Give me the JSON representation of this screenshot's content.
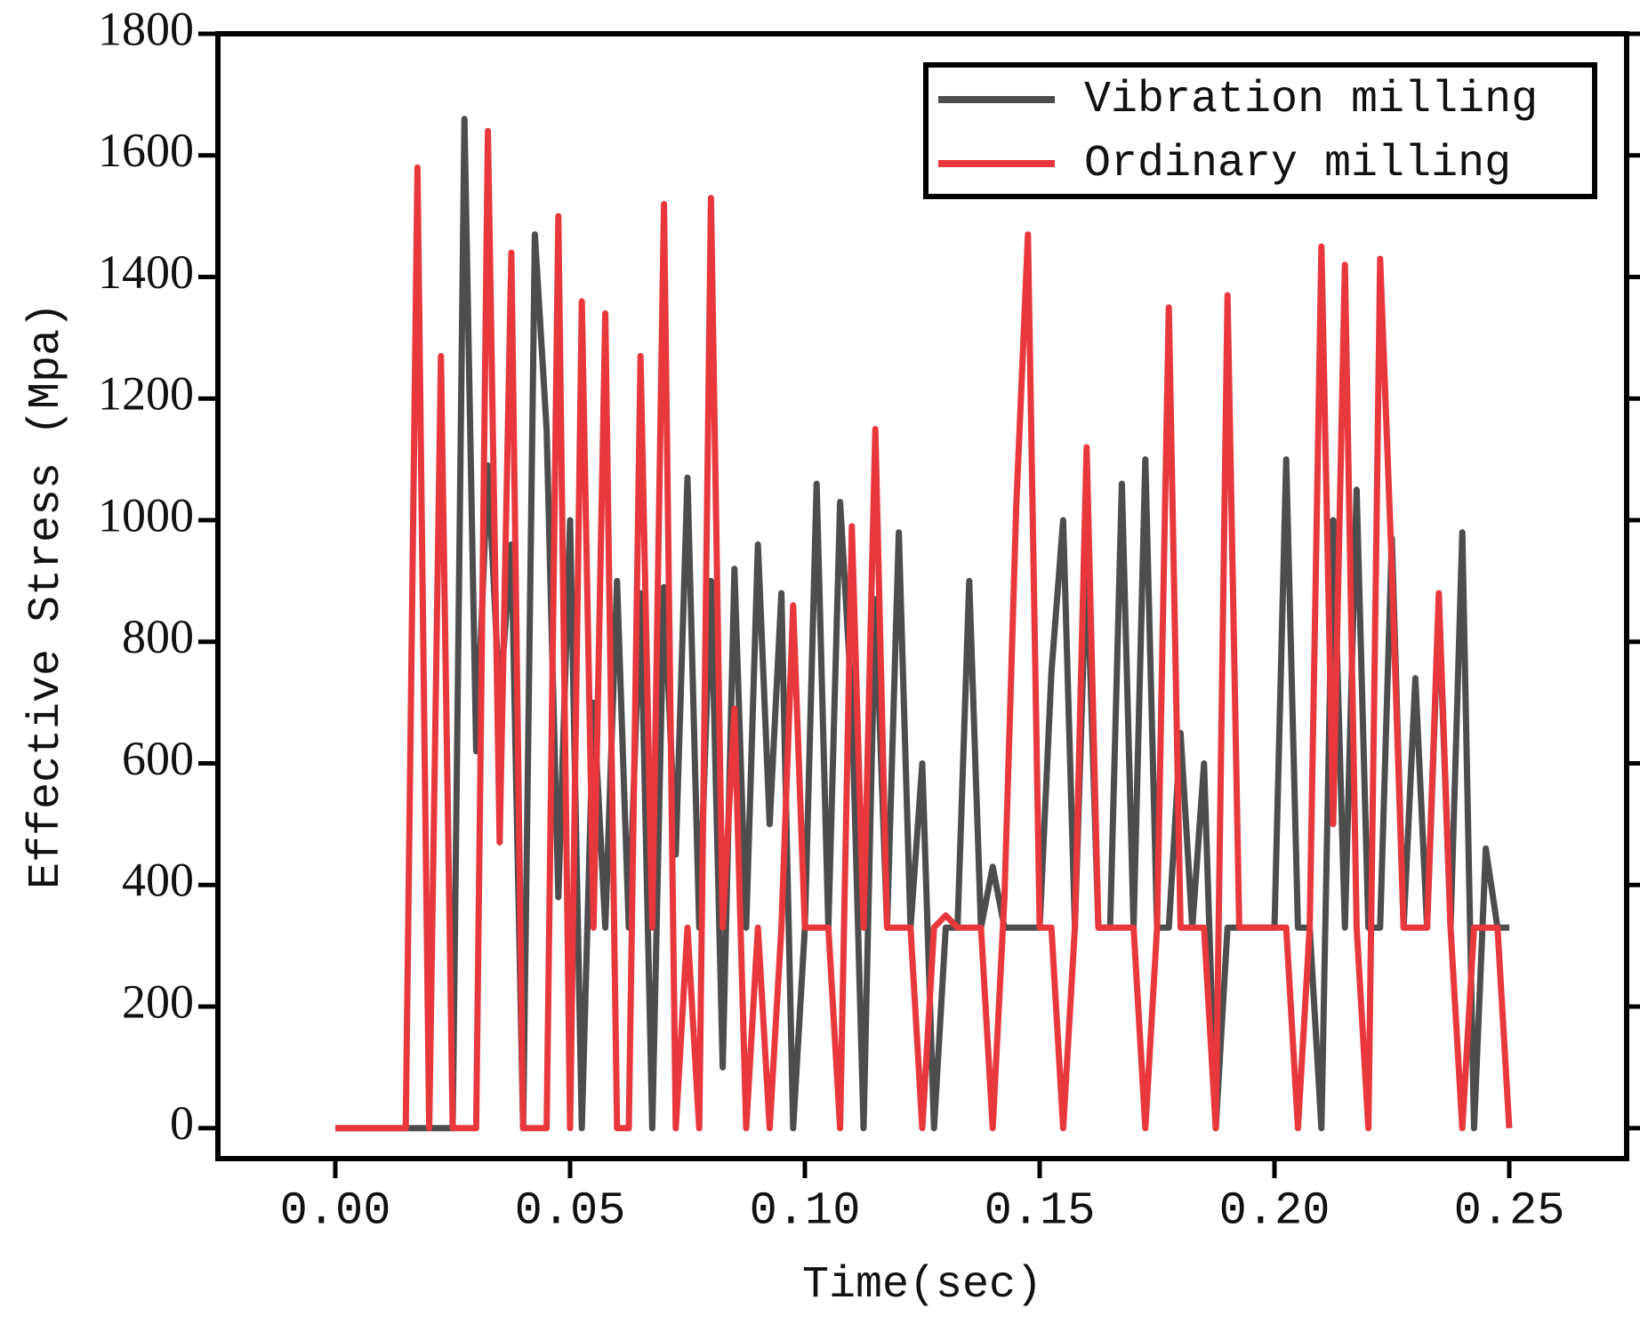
{
  "chart_data": {
    "type": "line",
    "xlabel": "Time(sec)",
    "ylabel": "Effective Stress (Mpa)",
    "x": [
      0,
      0.0025,
      0.005,
      0.0075,
      0.01,
      0.0125,
      0.015,
      0.0175,
      0.02,
      0.0225,
      0.025,
      0.0275,
      0.03,
      0.0325,
      0.035,
      0.0375,
      0.04,
      0.0425,
      0.045,
      0.0475,
      0.05,
      0.0525,
      0.055,
      0.0575,
      0.06,
      0.0625,
      0.065,
      0.0675,
      0.07,
      0.0725,
      0.075,
      0.0775,
      0.08,
      0.0825,
      0.085,
      0.0875,
      0.09,
      0.0925,
      0.095,
      0.0975,
      0.1,
      0.1025,
      0.105,
      0.1075,
      0.11,
      0.1125,
      0.115,
      0.1175,
      0.12,
      0.1225,
      0.125,
      0.1275,
      0.13,
      0.1325,
      0.135,
      0.1375,
      0.14,
      0.1425,
      0.145,
      0.1475,
      0.15,
      0.1525,
      0.155,
      0.1575,
      0.16,
      0.1625,
      0.165,
      0.1675,
      0.17,
      0.1725,
      0.175,
      0.1775,
      0.18,
      0.1825,
      0.185,
      0.1875,
      0.19,
      0.1925,
      0.195,
      0.1975,
      0.2,
      0.2025,
      0.205,
      0.2075,
      0.21,
      0.2125,
      0.215,
      0.2175,
      0.22,
      0.2225,
      0.225,
      0.2275,
      0.23,
      0.2325,
      0.235,
      0.2375,
      0.24,
      0.2425,
      0.245,
      0.2475,
      0.25
    ],
    "series": [
      {
        "name": "Vibration milling",
        "color": "#4d4d4d",
        "values": [
          0,
          0,
          0,
          0,
          0,
          0,
          0,
          0,
          0,
          0,
          0,
          1660,
          620,
          1090,
          700,
          960,
          0,
          1470,
          1150,
          380,
          1000,
          0,
          700,
          330,
          900,
          330,
          880,
          0,
          890,
          450,
          1070,
          330,
          900,
          100,
          920,
          330,
          960,
          500,
          880,
          0,
          330,
          1060,
          330,
          1030,
          700,
          0,
          870,
          330,
          980,
          330,
          600,
          0,
          330,
          330,
          900,
          330,
          430,
          330,
          330,
          330,
          330,
          750,
          1000,
          330,
          940,
          330,
          330,
          1060,
          330,
          1100,
          330,
          330,
          650,
          330,
          600,
          0,
          330,
          330,
          330,
          330,
          330,
          1100,
          330,
          330,
          0,
          1000,
          330,
          1050,
          330,
          330,
          970,
          330,
          740,
          330,
          860,
          330,
          980,
          0,
          460,
          330,
          330
        ]
      },
      {
        "name": "Ordinary milling",
        "color": "#e8383d",
        "values": [
          0,
          0,
          0,
          0,
          0,
          0,
          0,
          1580,
          0,
          1270,
          0,
          0,
          0,
          1640,
          470,
          1440,
          0,
          0,
          0,
          1500,
          0,
          1360,
          330,
          1340,
          0,
          0,
          1270,
          330,
          1520,
          0,
          330,
          0,
          1530,
          330,
          690,
          0,
          330,
          0,
          330,
          860,
          330,
          330,
          330,
          0,
          990,
          330,
          1150,
          330,
          330,
          330,
          0,
          330,
          350,
          330,
          330,
          330,
          0,
          380,
          1020,
          1470,
          330,
          330,
          0,
          330,
          1120,
          330,
          330,
          330,
          330,
          0,
          330,
          1350,
          330,
          330,
          330,
          0,
          1370,
          330,
          330,
          330,
          330,
          330,
          0,
          330,
          1450,
          500,
          1420,
          330,
          0,
          1430,
          920,
          330,
          330,
          330,
          880,
          330,
          0,
          330,
          330,
          330,
          0
        ]
      }
    ],
    "xlim": [
      -0.025,
      0.275
    ],
    "xticks": [
      {
        "value": 0,
        "label": "0.00"
      },
      {
        "value": 0.05,
        "label": "0.05"
      },
      {
        "value": 0.1,
        "label": "0.10"
      },
      {
        "value": 0.15,
        "label": "0.15"
      },
      {
        "value": 0.2,
        "label": "0.20"
      },
      {
        "value": 0.25,
        "label": "0.25"
      }
    ],
    "ylim": [
      -50,
      1800
    ],
    "yticks": [
      0,
      200,
      400,
      600,
      800,
      1000,
      1200,
      1400,
      1600,
      1800
    ],
    "legend": "upper right",
    "grid": false
  }
}
